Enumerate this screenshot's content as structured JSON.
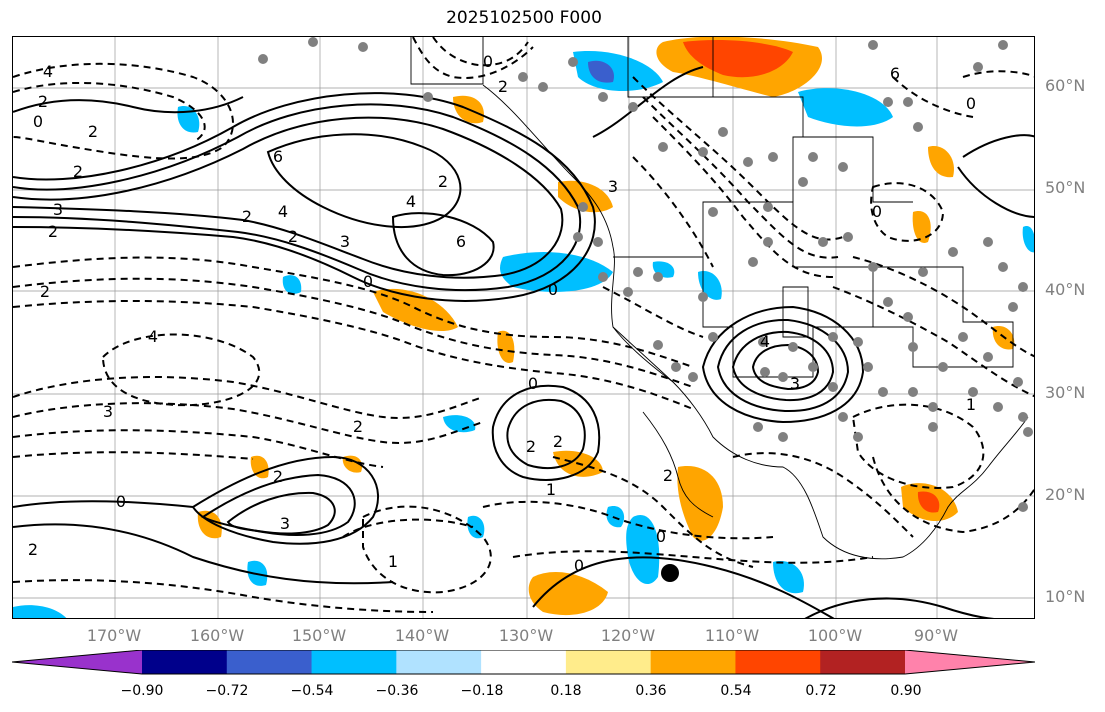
{
  "title": "2025102500 F000",
  "lat_labels": [
    "60°N",
    "50°N",
    "40°N",
    "30°N",
    "20°N",
    "10°N"
  ],
  "lon_labels": [
    "170°W",
    "160°W",
    "150°W",
    "140°W",
    "130°W",
    "120°W",
    "110°W",
    "100°W",
    "90°W"
  ],
  "colorbar": {
    "ticks": [
      "−0.90",
      "−0.72",
      "−0.54",
      "−0.36",
      "−0.18",
      "0.18",
      "0.36",
      "0.54",
      "0.72",
      "0.90"
    ],
    "colors": [
      "#9932cc",
      "#00008b",
      "#3a5fcd",
      "#00bfff",
      "#b0e2ff",
      "#ffffff",
      "#ffec8b",
      "#ffa500",
      "#ff4500",
      "#b22222",
      "#ff82ab"
    ]
  },
  "contour_labels": [
    "4",
    "2",
    "0",
    "2",
    "6",
    "3",
    "2",
    "2",
    "4",
    "2",
    "6",
    "3",
    "2",
    "0",
    "4",
    "3",
    "2",
    "2",
    "0",
    "2",
    "0",
    "2",
    "4",
    "3",
    "2",
    "2",
    "1",
    "0",
    "1",
    "2",
    "0",
    "0",
    "4",
    "3",
    "0",
    "1",
    "2",
    "3",
    "2",
    "0",
    "6",
    "0"
  ]
}
